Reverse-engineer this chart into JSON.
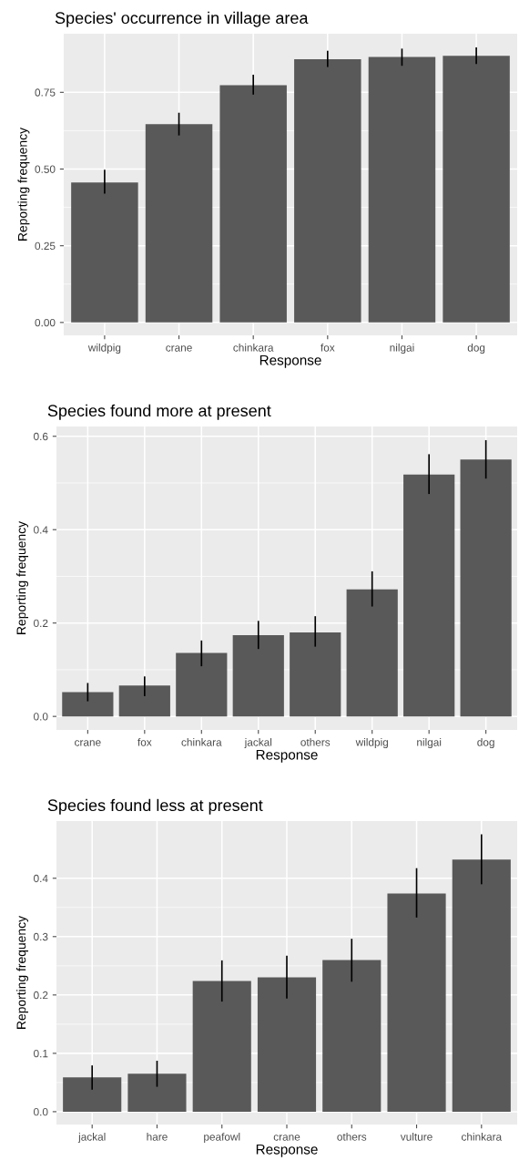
{
  "chart_data": [
    {
      "type": "bar",
      "title": "Species' occurrence in village area",
      "xlabel": "Response",
      "ylabel": "Reporting frequency",
      "categories": [
        "wildpig",
        "crane",
        "chinkara",
        "fox",
        "nilgai",
        "dog"
      ],
      "values": [
        0.456,
        0.646,
        0.773,
        0.858,
        0.865,
        0.869
      ],
      "errors": [
        [
          0.422,
          0.495
        ],
        [
          0.612,
          0.681
        ],
        [
          0.745,
          0.805
        ],
        [
          0.835,
          0.883
        ],
        [
          0.839,
          0.89
        ],
        [
          0.845,
          0.894
        ]
      ],
      "color": "#595959",
      "ylim": [
        -0.042,
        0.941
      ],
      "yticks": [
        {
          "value": 0,
          "label": "0.00"
        },
        {
          "value": 0.25,
          "label": "0.25"
        },
        {
          "value": 0.5,
          "label": "0.50"
        },
        {
          "value": 0.75,
          "label": "0.75"
        }
      ],
      "grid": true
    },
    {
      "type": "bar",
      "title": "Species found more at present",
      "xlabel": "Response",
      "ylabel": "Reporting frequency",
      "categories": [
        "crane",
        "fox",
        "chinkara",
        "jackal",
        "others",
        "wildpig",
        "nilgai",
        "dog"
      ],
      "values": [
        0.052,
        0.066,
        0.136,
        0.174,
        0.18,
        0.272,
        0.518,
        0.55
      ],
      "errors": [
        [
          0.034,
          0.07
        ],
        [
          0.045,
          0.084
        ],
        [
          0.109,
          0.161
        ],
        [
          0.146,
          0.203
        ],
        [
          0.151,
          0.213
        ],
        [
          0.237,
          0.309
        ],
        [
          0.478,
          0.56
        ],
        [
          0.511,
          0.59
        ]
      ],
      "color": "#595959",
      "ylim": [
        -0.029,
        0.621
      ],
      "yticks": [
        {
          "value": 0,
          "label": "0.0"
        },
        {
          "value": 0.2,
          "label": "0.2"
        },
        {
          "value": 0.4,
          "label": "0.4"
        },
        {
          "value": 0.6,
          "label": "0.6"
        }
      ],
      "grid": true
    },
    {
      "type": "bar",
      "title": "Species found less at present",
      "xlabel": "Response",
      "ylabel": "Reporting frequency",
      "categories": [
        "jackal",
        "hare",
        "peafowl",
        "crane",
        "others",
        "vulture",
        "chinkara"
      ],
      "values": [
        0.059,
        0.065,
        0.224,
        0.23,
        0.26,
        0.374,
        0.432
      ],
      "errors": [
        [
          0.039,
          0.078
        ],
        [
          0.044,
          0.086
        ],
        [
          0.19,
          0.258
        ],
        [
          0.195,
          0.266
        ],
        [
          0.224,
          0.295
        ],
        [
          0.334,
          0.416
        ],
        [
          0.391,
          0.474
        ]
      ],
      "color": "#595959",
      "ylim": [
        -0.022,
        0.498
      ],
      "yticks": [
        {
          "value": 0,
          "label": "0.0"
        },
        {
          "value": 0.1,
          "label": "0.1"
        },
        {
          "value": 0.2,
          "label": "0.2"
        },
        {
          "value": 0.3,
          "label": "0.3"
        },
        {
          "value": 0.4,
          "label": "0.4"
        }
      ],
      "grid": true
    }
  ]
}
